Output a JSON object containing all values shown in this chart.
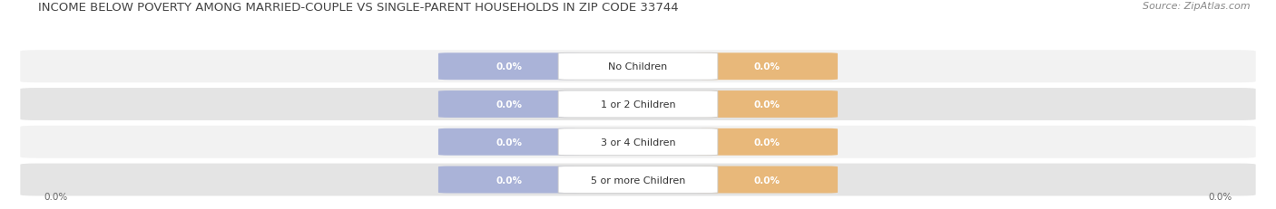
{
  "title": "INCOME BELOW POVERTY AMONG MARRIED-COUPLE VS SINGLE-PARENT HOUSEHOLDS IN ZIP CODE 33744",
  "source": "Source: ZipAtlas.com",
  "categories": [
    "No Children",
    "1 or 2 Children",
    "3 or 4 Children",
    "5 or more Children"
  ],
  "married_values": [
    0.0,
    0.0,
    0.0,
    0.0
  ],
  "single_values": [
    0.0,
    0.0,
    0.0,
    0.0
  ],
  "married_color": "#aab3d8",
  "single_color": "#e8b87a",
  "row_bg_light": "#f2f2f2",
  "row_bg_dark": "#e4e4e4",
  "title_fontsize": 9.5,
  "source_fontsize": 8,
  "label_fontsize": 7.5,
  "category_fontsize": 8,
  "value_label": "0.0%",
  "background_color": "#ffffff",
  "axis_label_color": "#666666",
  "title_color": "#444444",
  "source_color": "#888888",
  "cat_text_color": "#333333"
}
